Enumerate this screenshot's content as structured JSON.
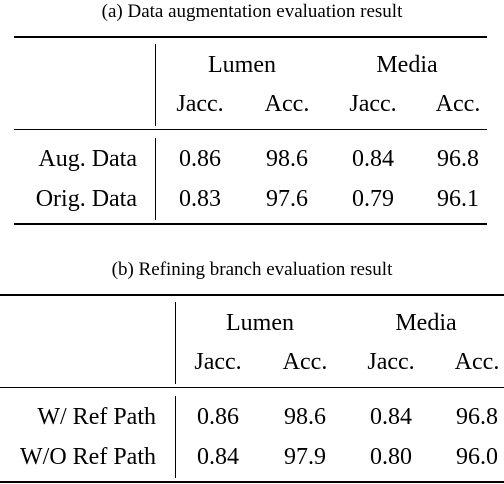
{
  "table_a": {
    "caption": "(a) Data augmentation evaluation result",
    "groups": [
      "Lumen",
      "Media"
    ],
    "subheaders": [
      "Jacc.",
      "Acc.",
      "Jacc.",
      "Acc."
    ],
    "rows": [
      {
        "label": "Aug. Data",
        "values": [
          "0.86",
          "98.6",
          "0.84",
          "96.8"
        ]
      },
      {
        "label": "Orig. Data",
        "values": [
          "0.83",
          "97.6",
          "0.79",
          "96.1"
        ]
      }
    ]
  },
  "table_b": {
    "caption": "(b) Refining branch evaluation result",
    "groups": [
      "Lumen",
      "Media"
    ],
    "subheaders": [
      "Jacc.",
      "Acc.",
      "Jacc.",
      "Acc."
    ],
    "rows": [
      {
        "label": "W/ Ref Path",
        "values": [
          "0.86",
          "98.6",
          "0.84",
          "96.8"
        ]
      },
      {
        "label": "W/O Ref Path",
        "values": [
          "0.84",
          "97.9",
          "0.80",
          "96.0"
        ]
      }
    ]
  }
}
